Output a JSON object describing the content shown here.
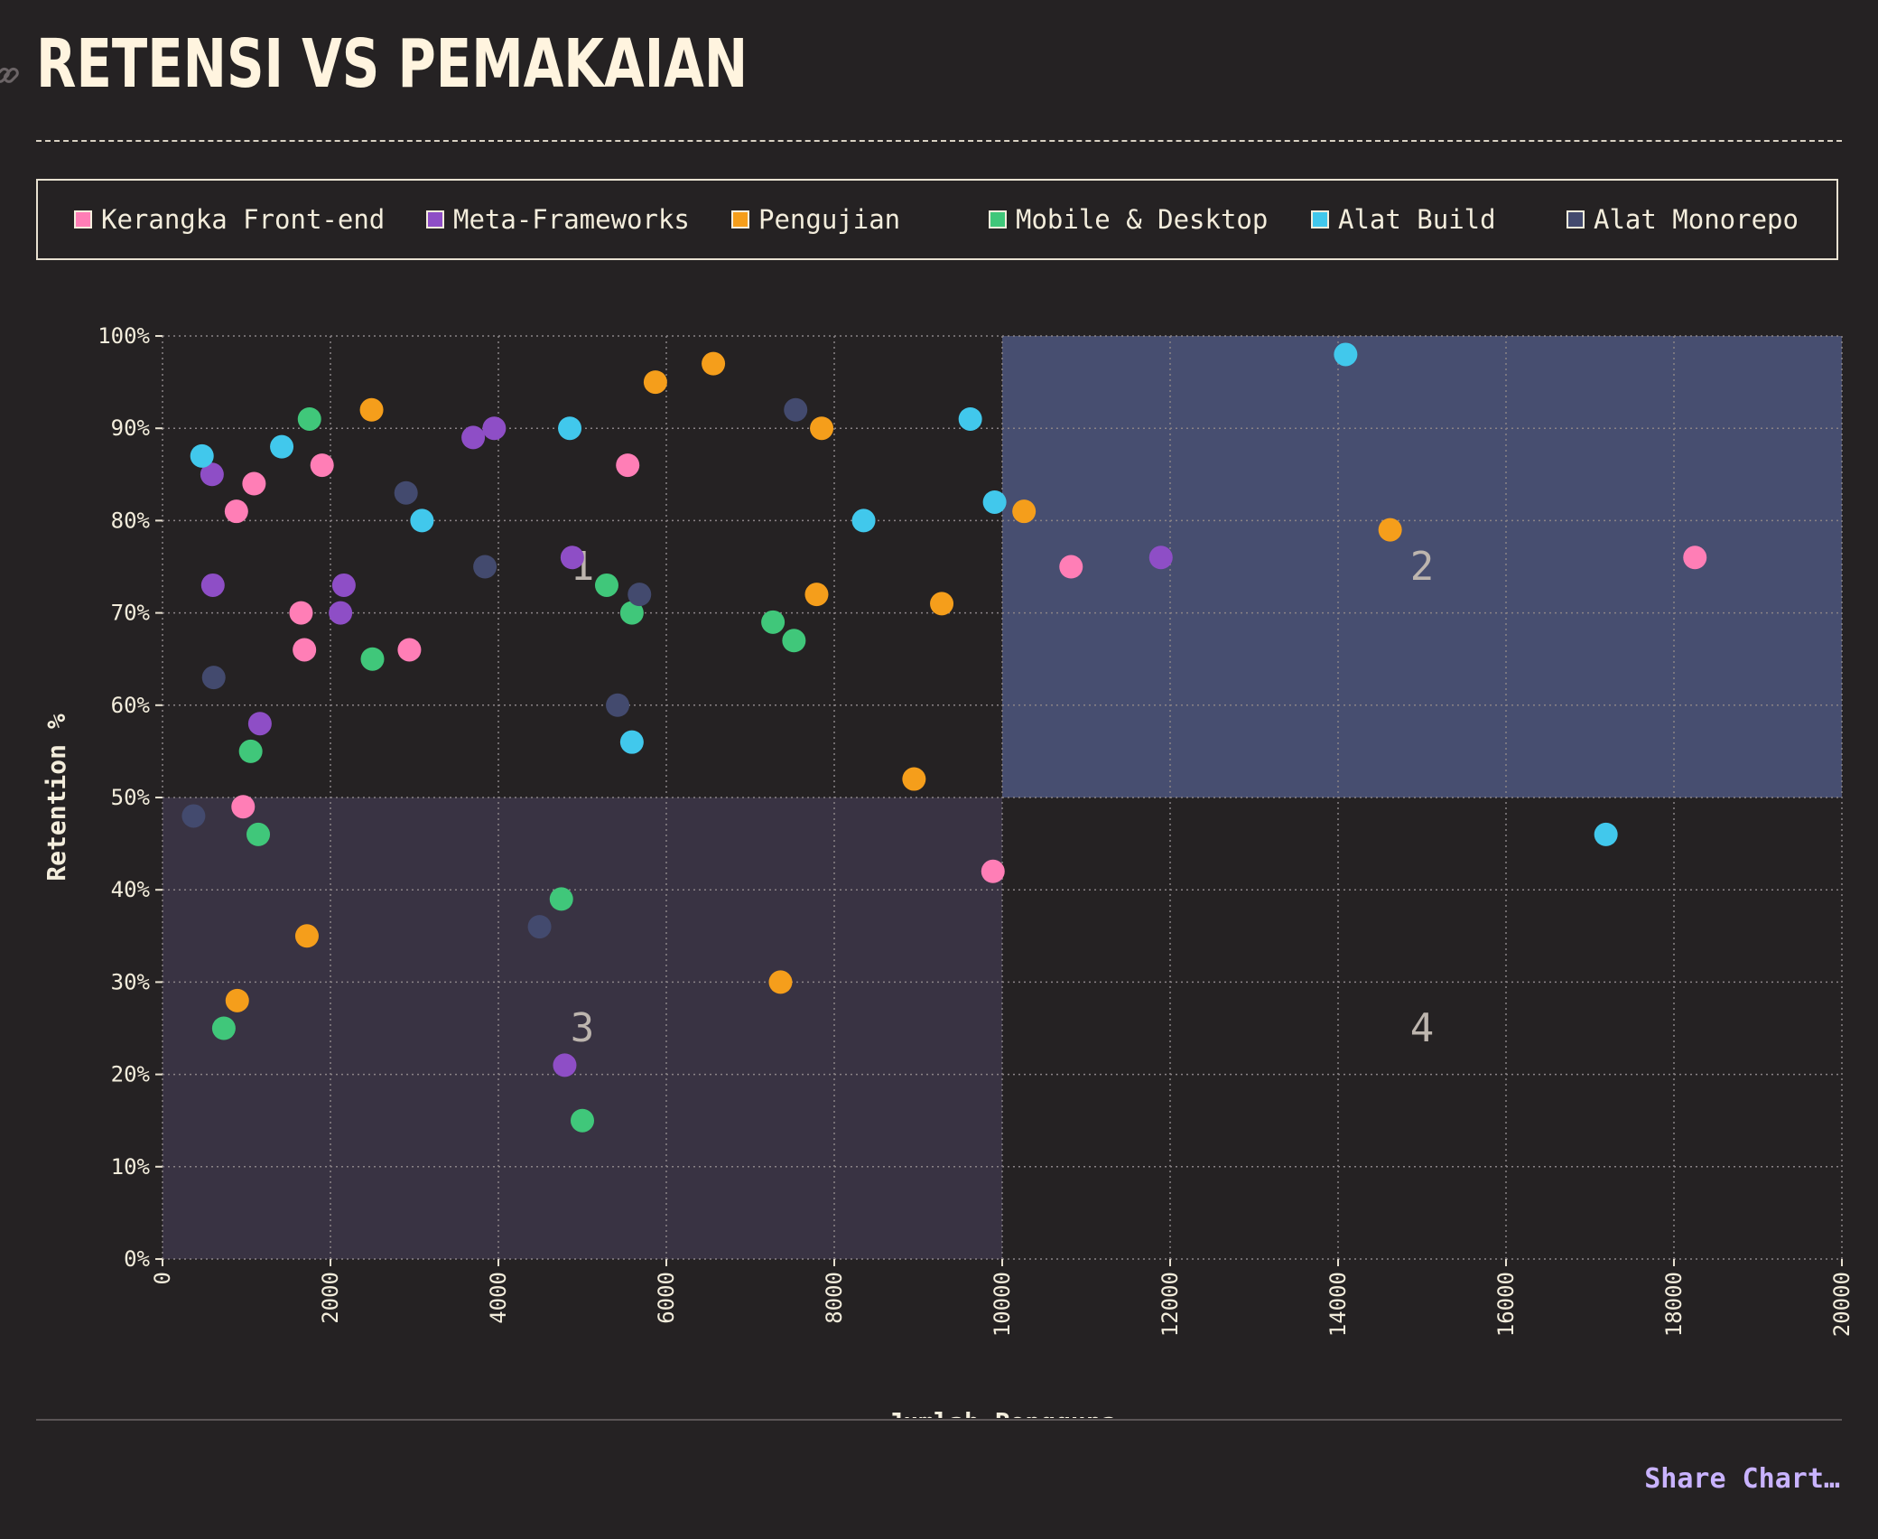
{
  "title": "RETENSI VS PEMAKAIAN",
  "share_label": "Share Chart…",
  "icons": {
    "anchor": "link-icon"
  },
  "colors": {
    "background": "#252223",
    "quadrant_1": "#252223",
    "quadrant_2": "#474e70",
    "quadrant_3": "#393343",
    "quadrant_4": "#252223",
    "grid": "#8a8386",
    "share": "#c9b3ff"
  },
  "chart_data": {
    "type": "scatter",
    "title": "RETENSI VS PEMAKAIAN",
    "xlabel": "Jumlah Pengguna",
    "ylabel": "Retention %",
    "xlim": [
      0,
      20000
    ],
    "ylim": [
      0,
      100
    ],
    "x_ticks": [
      "0",
      "2000",
      "4000",
      "6000",
      "8000",
      "10000",
      "12000",
      "14000",
      "16000",
      "18000",
      "20000"
    ],
    "y_ticks": [
      "0%",
      "10%",
      "20%",
      "30%",
      "40%",
      "50%",
      "60%",
      "70%",
      "80%",
      "90%",
      "100%"
    ],
    "grid": true,
    "legend_position": "top",
    "quadrants": [
      {
        "label": "1",
        "x_range": [
          0,
          10000
        ],
        "y_range": [
          50,
          100
        ]
      },
      {
        "label": "2",
        "x_range": [
          10000,
          20000
        ],
        "y_range": [
          50,
          100
        ]
      },
      {
        "label": "3",
        "x_range": [
          0,
          10000
        ],
        "y_range": [
          0,
          50
        ]
      },
      {
        "label": "4",
        "x_range": [
          10000,
          20000
        ],
        "y_range": [
          0,
          50
        ]
      }
    ],
    "series": [
      {
        "name": "Kerangka Front-end",
        "color": "#ff7eb6",
        "points": [
          [
            880,
            81
          ],
          [
            1090,
            84
          ],
          [
            1900,
            86
          ],
          [
            1650,
            70
          ],
          [
            1690,
            66
          ],
          [
            2940,
            66
          ],
          [
            5540,
            86
          ],
          [
            960,
            49
          ],
          [
            9890,
            42
          ],
          [
            10820,
            75
          ],
          [
            18250,
            76
          ]
        ]
      },
      {
        "name": "Meta-Frameworks",
        "color": "#8e4ec6",
        "points": [
          [
            590,
            85
          ],
          [
            600,
            73
          ],
          [
            2160,
            73
          ],
          [
            2120,
            70
          ],
          [
            3700,
            89
          ],
          [
            3950,
            90
          ],
          [
            4880,
            76
          ],
          [
            1160,
            58
          ],
          [
            4790,
            21
          ],
          [
            11890,
            76
          ]
        ]
      },
      {
        "name": "Pengujian",
        "color": "#f59e1b",
        "points": [
          [
            2490,
            92
          ],
          [
            5870,
            95
          ],
          [
            6560,
            97
          ],
          [
            7850,
            90
          ],
          [
            7790,
            72
          ],
          [
            9280,
            71
          ],
          [
            10260,
            81
          ],
          [
            14620,
            79
          ],
          [
            8950,
            52
          ],
          [
            1720,
            35
          ],
          [
            890,
            28
          ],
          [
            7360,
            30
          ]
        ]
      },
      {
        "name": "Mobile & Desktop",
        "color": "#40c77a",
        "points": [
          [
            1750,
            91
          ],
          [
            2500,
            65
          ],
          [
            5290,
            73
          ],
          [
            5590,
            70
          ],
          [
            7270,
            69
          ],
          [
            7520,
            67
          ],
          [
            1050,
            55
          ],
          [
            1140,
            46
          ],
          [
            4750,
            39
          ],
          [
            730,
            25
          ],
          [
            5000,
            15
          ]
        ]
      },
      {
        "name": "Alat Build",
        "color": "#41c8ec",
        "points": [
          [
            470,
            87
          ],
          [
            1420,
            88
          ],
          [
            3090,
            80
          ],
          [
            4850,
            90
          ],
          [
            5590,
            56
          ],
          [
            8350,
            80
          ],
          [
            9620,
            91
          ],
          [
            9910,
            82
          ],
          [
            14090,
            98
          ],
          [
            17190,
            46
          ]
        ]
      },
      {
        "name": "Alat Monorepo",
        "color": "#434a6e",
        "points": [
          [
            2900,
            83
          ],
          [
            3840,
            75
          ],
          [
            5680,
            72
          ],
          [
            5420,
            60
          ],
          [
            7540,
            92
          ],
          [
            610,
            63
          ],
          [
            370,
            48
          ],
          [
            4490,
            36
          ]
        ]
      }
    ]
  }
}
